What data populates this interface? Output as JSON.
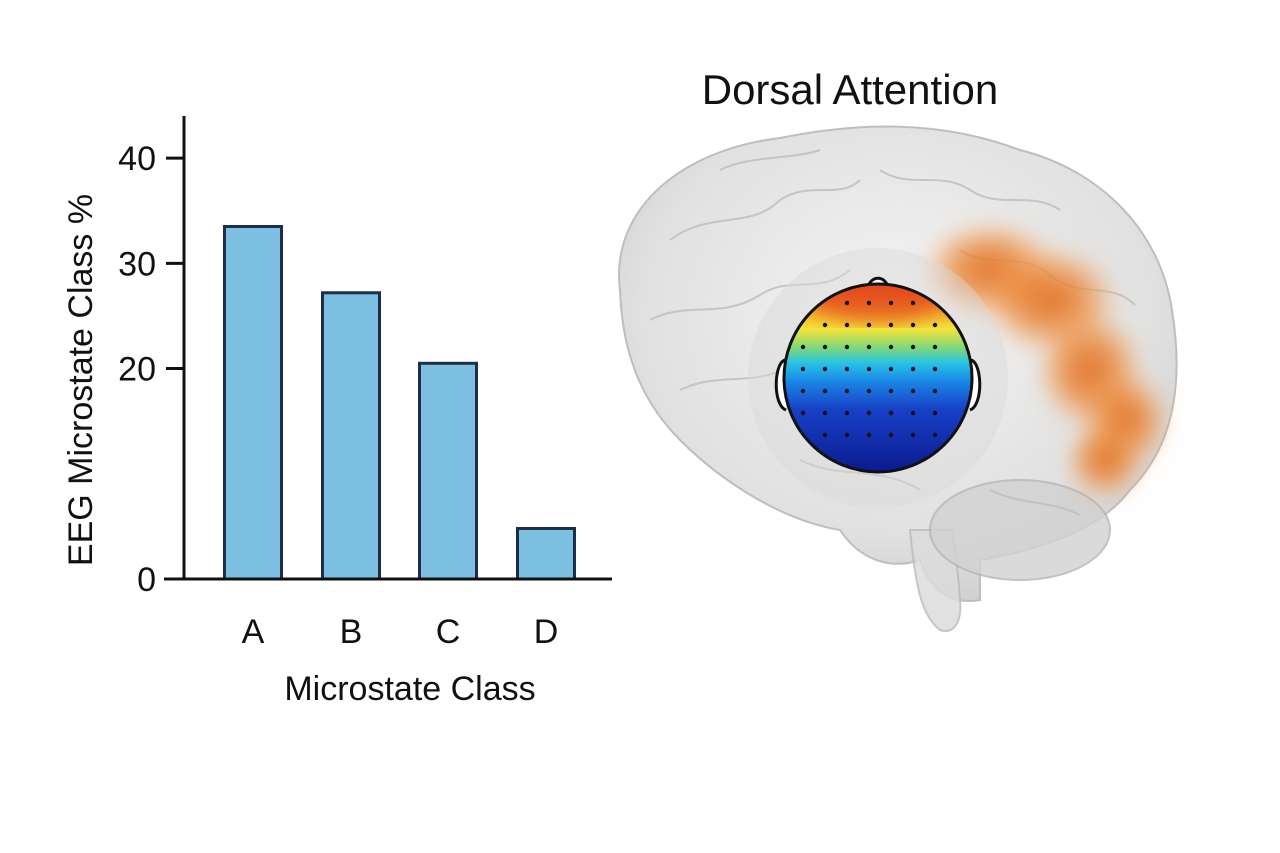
{
  "chart_data": {
    "type": "bar",
    "categories": [
      "A",
      "B",
      "C",
      "D"
    ],
    "values": [
      33.5,
      27.2,
      20.5,
      4.8
    ],
    "xlabel": "Microstate Class",
    "ylabel": "EEG Microstate Class %",
    "ylim": [
      0,
      44
    ],
    "yticks": [
      0,
      20,
      30,
      40
    ],
    "grid": false,
    "bar_color": "#7dbfe0",
    "bar_edge_color": "#1c2e4a"
  },
  "brain_panel": {
    "title": "Dorsal Attention",
    "activation_color": "#e8782a",
    "topomap_colormap": "jet"
  }
}
